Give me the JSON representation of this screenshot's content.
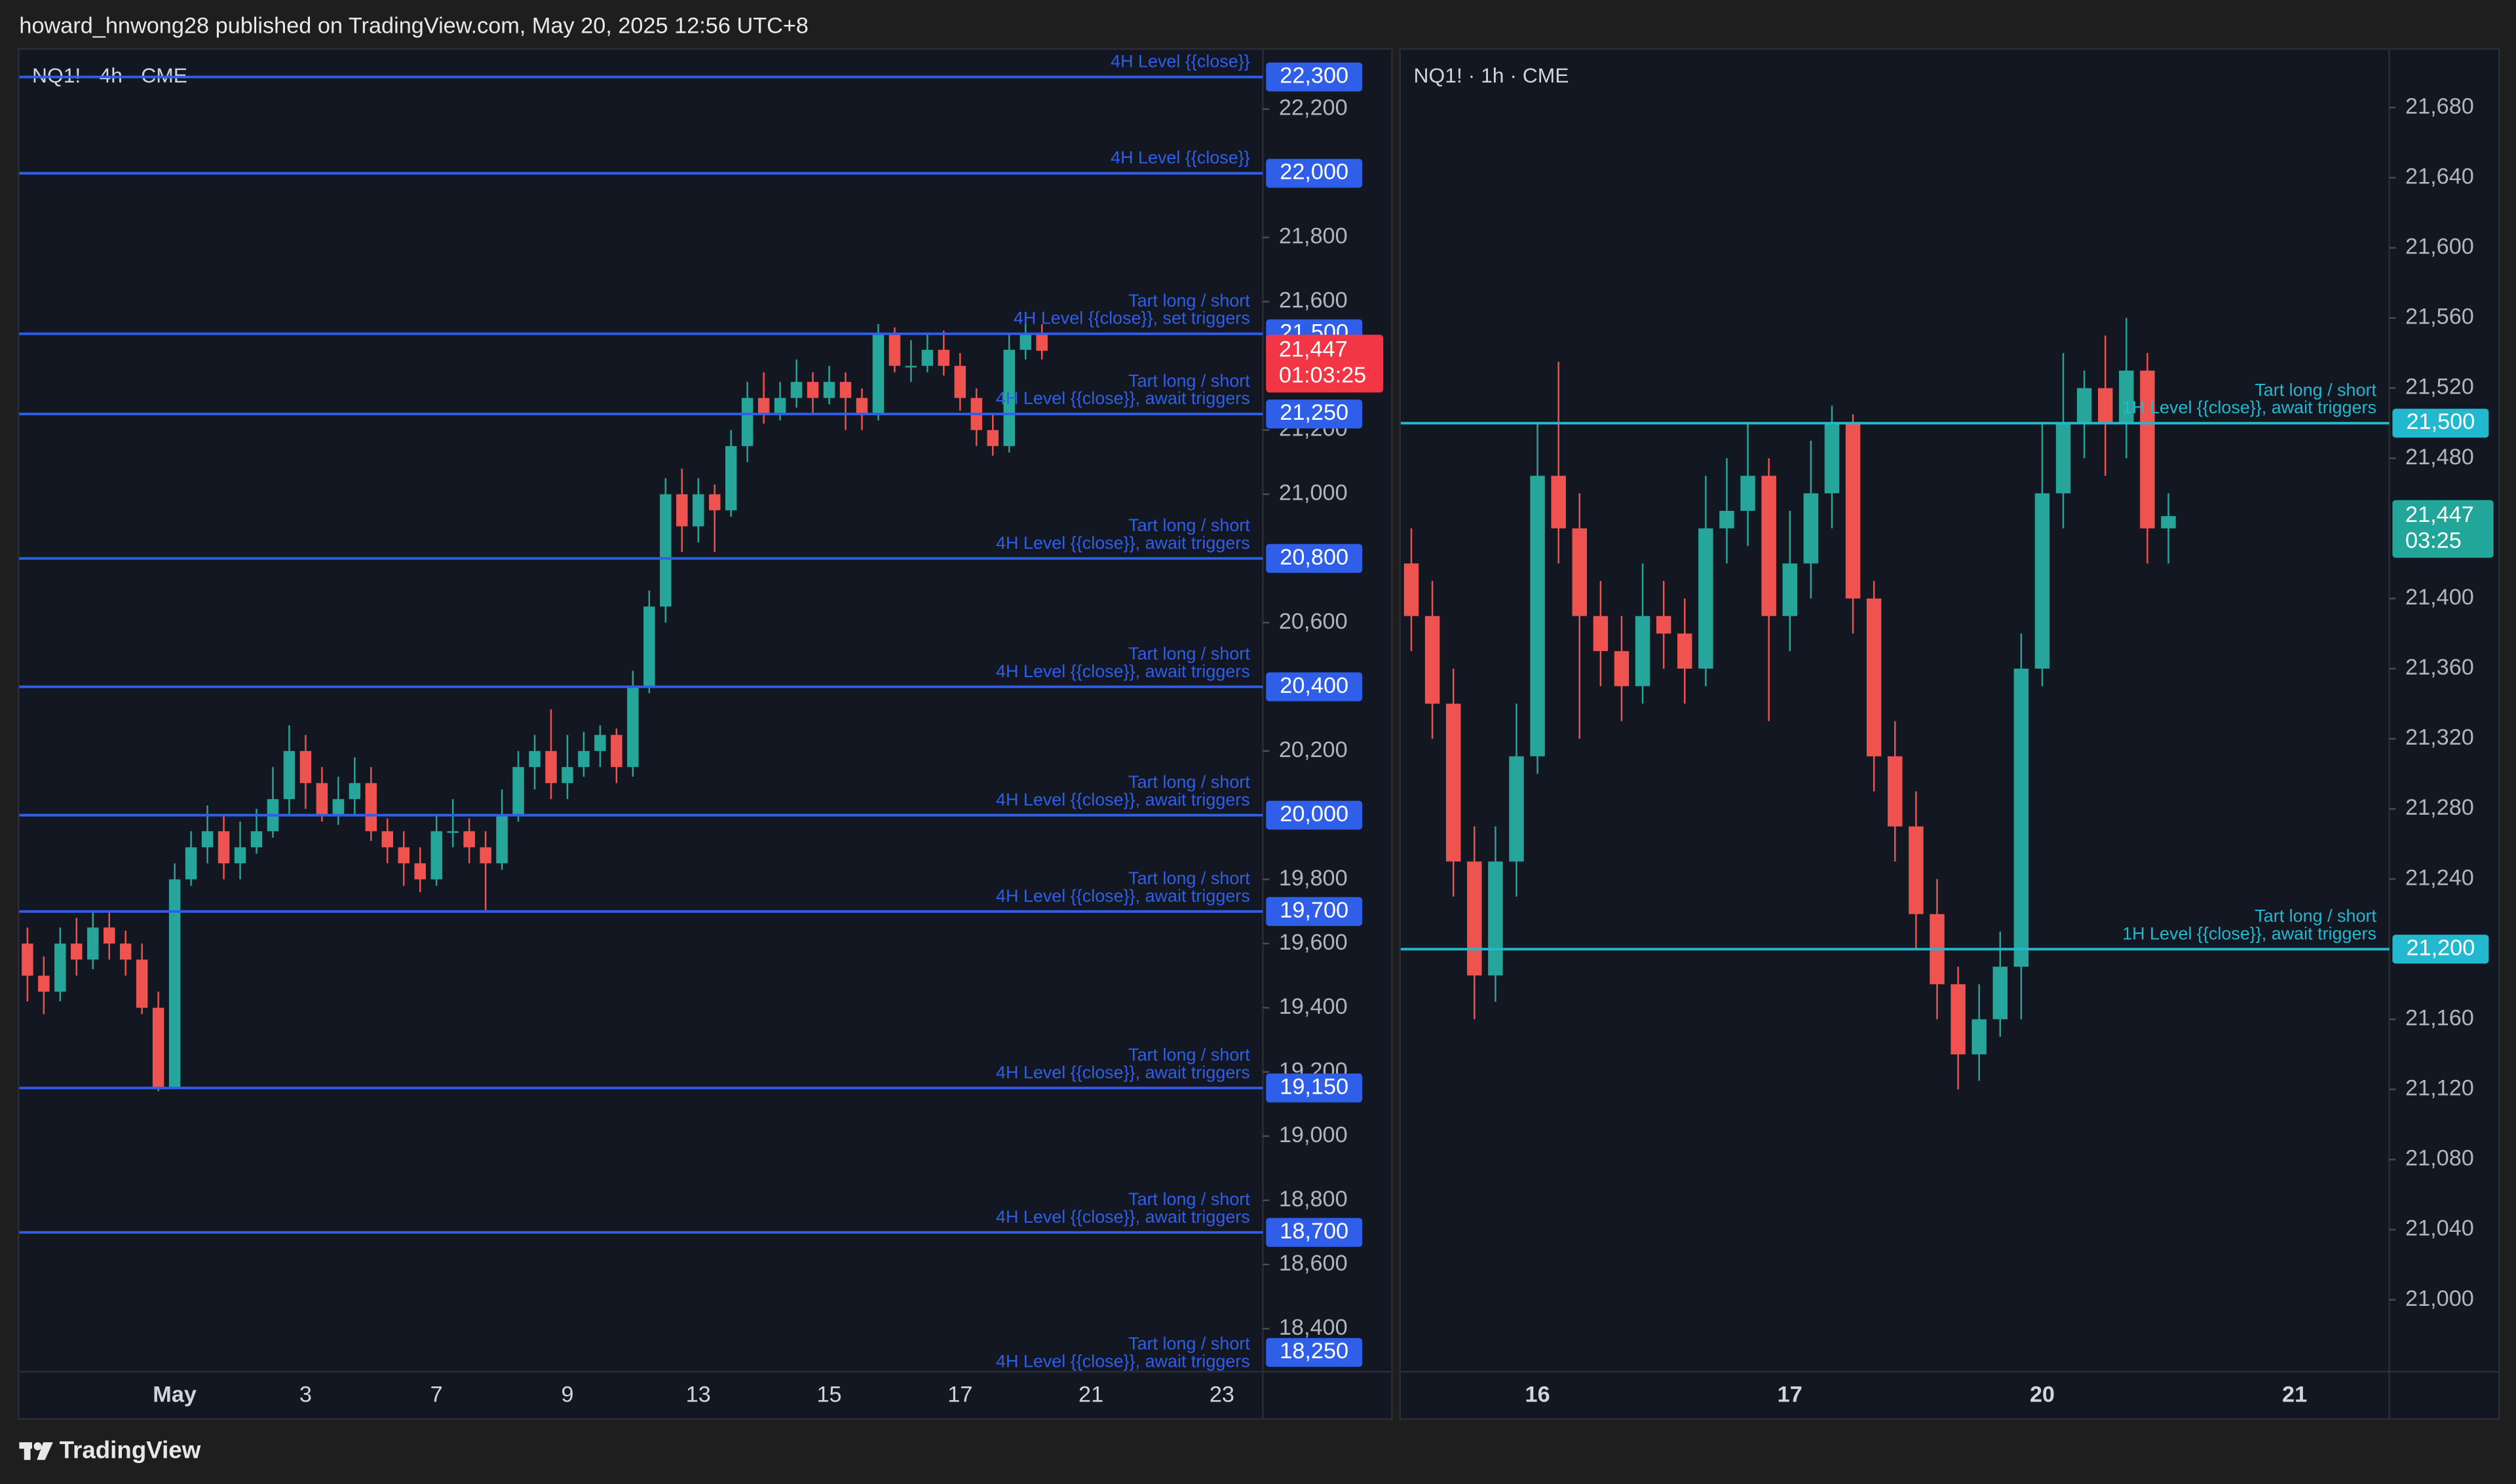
{
  "header": {
    "text": "howard_hnwong28 published on TradingView.com, May 20, 2025 12:56 UTC+8"
  },
  "footer": {
    "brand": "TradingView"
  },
  "chart_data": [
    {
      "type": "candlestick",
      "title": "NQ1! · 4h · CME",
      "up_color": "#26a69a",
      "down_color": "#ef5350",
      "level_color": "#2f5ee8",
      "categories": [
        null,
        null,
        null,
        null,
        null,
        null,
        null,
        null,
        null,
        "May",
        null,
        null,
        null,
        null,
        null,
        null,
        null,
        "3",
        null,
        null,
        null,
        null,
        null,
        null,
        null,
        "7",
        null,
        null,
        null,
        null,
        null,
        null,
        null,
        "9",
        null,
        null,
        null,
        null,
        null,
        null,
        null,
        "13",
        null,
        null,
        null,
        null,
        null,
        null,
        null,
        "15",
        null,
        null,
        null,
        null,
        null,
        null,
        null,
        "17",
        null,
        null,
        null,
        null,
        null,
        null,
        null,
        "21",
        null,
        null,
        null,
        null,
        null,
        null,
        null,
        "23",
        null,
        null
      ],
      "open": [
        19600,
        19500,
        19450,
        19600,
        19550,
        19650,
        19600,
        19550,
        19400,
        19150,
        19800,
        19900,
        19950,
        19850,
        19900,
        19950,
        20050,
        20200,
        20100,
        20000,
        20050,
        20100,
        19950,
        19900,
        19850,
        19800,
        19950,
        19950,
        19900,
        19850,
        20000,
        20150,
        20200,
        20100,
        20150,
        20200,
        20250,
        20150,
        20400,
        20650,
        21000,
        20900,
        21000,
        20950,
        21150,
        21300,
        21250,
        21300,
        21350,
        21300,
        21350,
        21300,
        21250,
        21500,
        21400,
        21400,
        21450,
        21400,
        21300,
        21200,
        21150,
        21450,
        21500,
        null,
        null,
        null,
        null,
        null,
        null,
        null,
        null,
        null,
        null,
        null,
        null,
        null
      ],
      "high": [
        19650,
        19560,
        19650,
        19680,
        19700,
        19700,
        19640,
        19600,
        19450,
        19850,
        19950,
        20030,
        20000,
        19980,
        20020,
        20150,
        20280,
        20250,
        20150,
        20120,
        20180,
        20150,
        19990,
        19950,
        19900,
        20000,
        20050,
        19990,
        19950,
        20080,
        20200,
        20250,
        20330,
        20250,
        20260,
        20280,
        20270,
        20450,
        20700,
        21050,
        21080,
        21050,
        21030,
        21200,
        21350,
        21380,
        21350,
        21420,
        21380,
        21400,
        21380,
        21330,
        21530,
        21520,
        21480,
        21500,
        21510,
        21440,
        21330,
        21250,
        21500,
        21560,
        21530,
        null,
        null,
        null,
        null,
        null,
        null,
        null,
        null,
        null,
        null,
        null,
        null,
        null
      ],
      "low": [
        19420,
        19380,
        19420,
        19500,
        19520,
        19550,
        19500,
        19380,
        19140,
        19150,
        19780,
        19850,
        19800,
        19800,
        19880,
        19930,
        20000,
        20020,
        19980,
        19970,
        20000,
        19920,
        19850,
        19780,
        19760,
        19780,
        19900,
        19850,
        19700,
        19830,
        19980,
        20080,
        20050,
        20050,
        20120,
        20150,
        20100,
        20120,
        20380,
        20600,
        20820,
        20850,
        20820,
        20930,
        21100,
        21220,
        21230,
        21270,
        21250,
        21280,
        21200,
        21200,
        21230,
        21380,
        21350,
        21380,
        21370,
        21260,
        21150,
        21120,
        21130,
        21420,
        21420,
        null,
        null,
        null,
        null,
        null,
        null,
        null,
        null,
        null,
        null,
        null,
        null,
        null
      ],
      "close": [
        19500,
        19450,
        19600,
        19550,
        19650,
        19600,
        19550,
        19400,
        19150,
        19800,
        19900,
        19950,
        19850,
        19900,
        19950,
        20050,
        20200,
        20100,
        20000,
        20050,
        20100,
        19950,
        19900,
        19850,
        19800,
        19950,
        19950,
        19900,
        19850,
        20000,
        20150,
        20200,
        20100,
        20150,
        20200,
        20250,
        20150,
        20400,
        20650,
        21000,
        20900,
        21000,
        20950,
        21150,
        21300,
        21250,
        21300,
        21350,
        21300,
        21350,
        21300,
        21250,
        21500,
        21400,
        21400,
        21450,
        21400,
        21300,
        21200,
        21150,
        21450,
        21500,
        21447,
        null,
        null,
        null,
        null,
        null,
        null,
        null,
        null,
        null,
        null,
        null,
        null,
        null
      ],
      "ylim": [
        18266,
        22385
      ],
      "yticks": [
        {
          "value": 18400,
          "label": "18,400"
        },
        {
          "value": 18600,
          "label": "18,600"
        },
        {
          "value": 18800,
          "label": "18,800"
        },
        {
          "value": 19000,
          "label": "19,000"
        },
        {
          "value": 19200,
          "label": "19,200"
        },
        {
          "value": 19400,
          "label": "19,400"
        },
        {
          "value": 19600,
          "label": "19,600"
        },
        {
          "value": 19800,
          "label": "19,800"
        },
        {
          "value": 20200,
          "label": "20,200"
        },
        {
          "value": 20600,
          "label": "20,600"
        },
        {
          "value": 21000,
          "label": "21,000"
        },
        {
          "value": 21200,
          "label": "21,200"
        },
        {
          "value": 21600,
          "label": "21,600"
        },
        {
          "value": 21800,
          "label": "21,800"
        },
        {
          "value": 22200,
          "label": "22,200"
        }
      ],
      "levels": [
        {
          "value": 22300,
          "label": "22,300",
          "text": [
            "4H Level {{close}}"
          ]
        },
        {
          "value": 22000,
          "label": "22,000",
          "text": [
            "4H Level {{close}}"
          ]
        },
        {
          "value": 21500,
          "label": "21,500",
          "text": [
            "Tart long / short",
            "4H Level {{close}}, set triggers"
          ]
        },
        {
          "value": 21250,
          "label": "21,250",
          "text": [
            "Tart long / short",
            "4H Level {{close}}, await triggers"
          ]
        },
        {
          "value": 20800,
          "label": "20,800",
          "text": [
            "Tart long / short",
            "4H Level {{close}}, await triggers"
          ]
        },
        {
          "value": 20400,
          "label": "20,400",
          "text": [
            "Tart long / short",
            "4H Level {{close}}, await triggers"
          ]
        },
        {
          "value": 20000,
          "label": "20,000",
          "text": [
            "Tart long / short",
            "4H Level {{close}}, await triggers"
          ]
        },
        {
          "value": 19700,
          "label": "19,700",
          "text": [
            "Tart long / short",
            "4H Level {{close}}, await triggers"
          ]
        },
        {
          "value": 19150,
          "label": "19,150",
          "text": [
            "Tart long / short",
            "4H Level {{close}}, await triggers"
          ]
        },
        {
          "value": 18700,
          "label": "18,700",
          "text": [
            "Tart long / short",
            "4H Level {{close}}, await triggers"
          ]
        },
        {
          "value": 18250,
          "label": "18,250",
          "text": [
            "Tart long / short",
            "4H Level {{close}}, await triggers"
          ]
        }
      ],
      "last_price": {
        "value": 21447,
        "label": "21,447",
        "countdown": "01:03:25",
        "color": "#f23645"
      }
    },
    {
      "type": "candlestick",
      "title": "NQ1! · 1h · CME",
      "up_color": "#26a69a",
      "down_color": "#ef5350",
      "level_color": "#22b8cf",
      "categories": [
        null,
        null,
        null,
        null,
        null,
        null,
        "16",
        null,
        null,
        null,
        null,
        null,
        null,
        null,
        null,
        null,
        null,
        null,
        "17",
        null,
        null,
        null,
        null,
        null,
        null,
        null,
        null,
        null,
        null,
        null,
        "20",
        null,
        null,
        null,
        null,
        null,
        null,
        null,
        null,
        null,
        null,
        null,
        "21",
        null,
        null,
        null,
        null
      ],
      "open": [
        21420,
        21390,
        21340,
        21250,
        21185,
        21250,
        21310,
        21470,
        21440,
        21390,
        21370,
        21350,
        21390,
        21380,
        21360,
        21440,
        21450,
        21470,
        21390,
        21420,
        21460,
        21500,
        21400,
        21310,
        21270,
        21220,
        21180,
        21140,
        21160,
        21190,
        21360,
        21460,
        21500,
        21520,
        21500,
        21530,
        21440,
        null,
        null,
        null,
        null,
        null,
        null,
        null,
        null,
        null,
        null
      ],
      "high": [
        21440,
        21410,
        21360,
        21270,
        21270,
        21340,
        21500,
        21535,
        21460,
        21410,
        21390,
        21420,
        21410,
        21400,
        21470,
        21480,
        21500,
        21480,
        21450,
        21490,
        21510,
        21505,
        21410,
        21330,
        21290,
        21240,
        21190,
        21180,
        21210,
        21380,
        21500,
        21540,
        21530,
        21550,
        21560,
        21540,
        21460,
        null,
        null,
        null,
        null,
        null,
        null,
        null,
        null,
        null,
        null
      ],
      "low": [
        21370,
        21320,
        21230,
        21160,
        21170,
        21230,
        21300,
        21420,
        21320,
        21350,
        21330,
        21340,
        21360,
        21340,
        21350,
        21420,
        21430,
        21330,
        21370,
        21400,
        21440,
        21380,
        21290,
        21250,
        21200,
        21160,
        21120,
        21125,
        21150,
        21160,
        21350,
        21440,
        21480,
        21470,
        21480,
        21420,
        21420,
        null,
        null,
        null,
        null,
        null,
        null,
        null,
        null,
        null,
        null
      ],
      "close": [
        21390,
        21340,
        21250,
        21185,
        21250,
        21310,
        21470,
        21440,
        21390,
        21370,
        21350,
        21390,
        21380,
        21360,
        21440,
        21450,
        21470,
        21390,
        21420,
        21460,
        21500,
        21400,
        21310,
        21270,
        21220,
        21180,
        21140,
        21160,
        21190,
        21360,
        21460,
        21500,
        21520,
        21500,
        21530,
        21440,
        21447,
        null,
        null,
        null,
        null,
        null,
        null,
        null,
        null,
        null,
        null
      ],
      "ylim": [
        20959,
        21713
      ],
      "yticks": [
        {
          "value": 21000,
          "label": "21,000"
        },
        {
          "value": 21040,
          "label": "21,040"
        },
        {
          "value": 21080,
          "label": "21,080"
        },
        {
          "value": 21120,
          "label": "21,120"
        },
        {
          "value": 21160,
          "label": "21,160"
        },
        {
          "value": 21240,
          "label": "21,240"
        },
        {
          "value": 21280,
          "label": "21,280"
        },
        {
          "value": 21320,
          "label": "21,320"
        },
        {
          "value": 21360,
          "label": "21,360"
        },
        {
          "value": 21400,
          "label": "21,400"
        },
        {
          "value": 21480,
          "label": "21,480"
        },
        {
          "value": 21520,
          "label": "21,520"
        },
        {
          "value": 21560,
          "label": "21,560"
        },
        {
          "value": 21600,
          "label": "21,600"
        },
        {
          "value": 21640,
          "label": "21,640"
        },
        {
          "value": 21680,
          "label": "21,680"
        }
      ],
      "levels": [
        {
          "value": 21500,
          "label": "21,500",
          "text": [
            "Tart long / short",
            "1H Level {{close}}, await triggers"
          ]
        },
        {
          "value": 21200,
          "label": "21,200",
          "text": [
            "Tart long / short",
            "1H Level {{close}}, await triggers"
          ]
        }
      ],
      "last_price": {
        "value": 21447,
        "label": "21,447",
        "countdown": "03:25",
        "color": "#22a69a"
      }
    }
  ]
}
